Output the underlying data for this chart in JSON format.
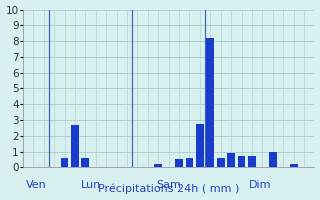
{
  "xlabel": "Précipitations 24h ( mm )",
  "background_color": "#d8f0f0",
  "bar_color": "#1a3ccc",
  "vline_color": "#4466aa",
  "ylim": [
    0,
    10
  ],
  "yticks": [
    0,
    1,
    2,
    3,
    4,
    5,
    6,
    7,
    8,
    9,
    10
  ],
  "grid_color": "#aacccc",
  "day_labels": [
    "Ven",
    "Lun",
    "Sam",
    "Dim"
  ],
  "day_label_color": "#2244bb",
  "vline_positions": [
    2.5,
    10.5,
    17.5
  ],
  "bar_positions": [
    1,
    4,
    5,
    6,
    13,
    15,
    16,
    17,
    18,
    19,
    20,
    21,
    22,
    24,
    26
  ],
  "bar_heights": [
    0.0,
    0.6,
    2.7,
    0.6,
    0.2,
    0.5,
    0.6,
    2.75,
    8.2,
    0.6,
    0.9,
    0.7,
    0.7,
    1.0,
    0.2
  ],
  "n_total": 28,
  "bar_width": 0.75,
  "label_fontsize": 8,
  "tick_fontsize": 7.5
}
